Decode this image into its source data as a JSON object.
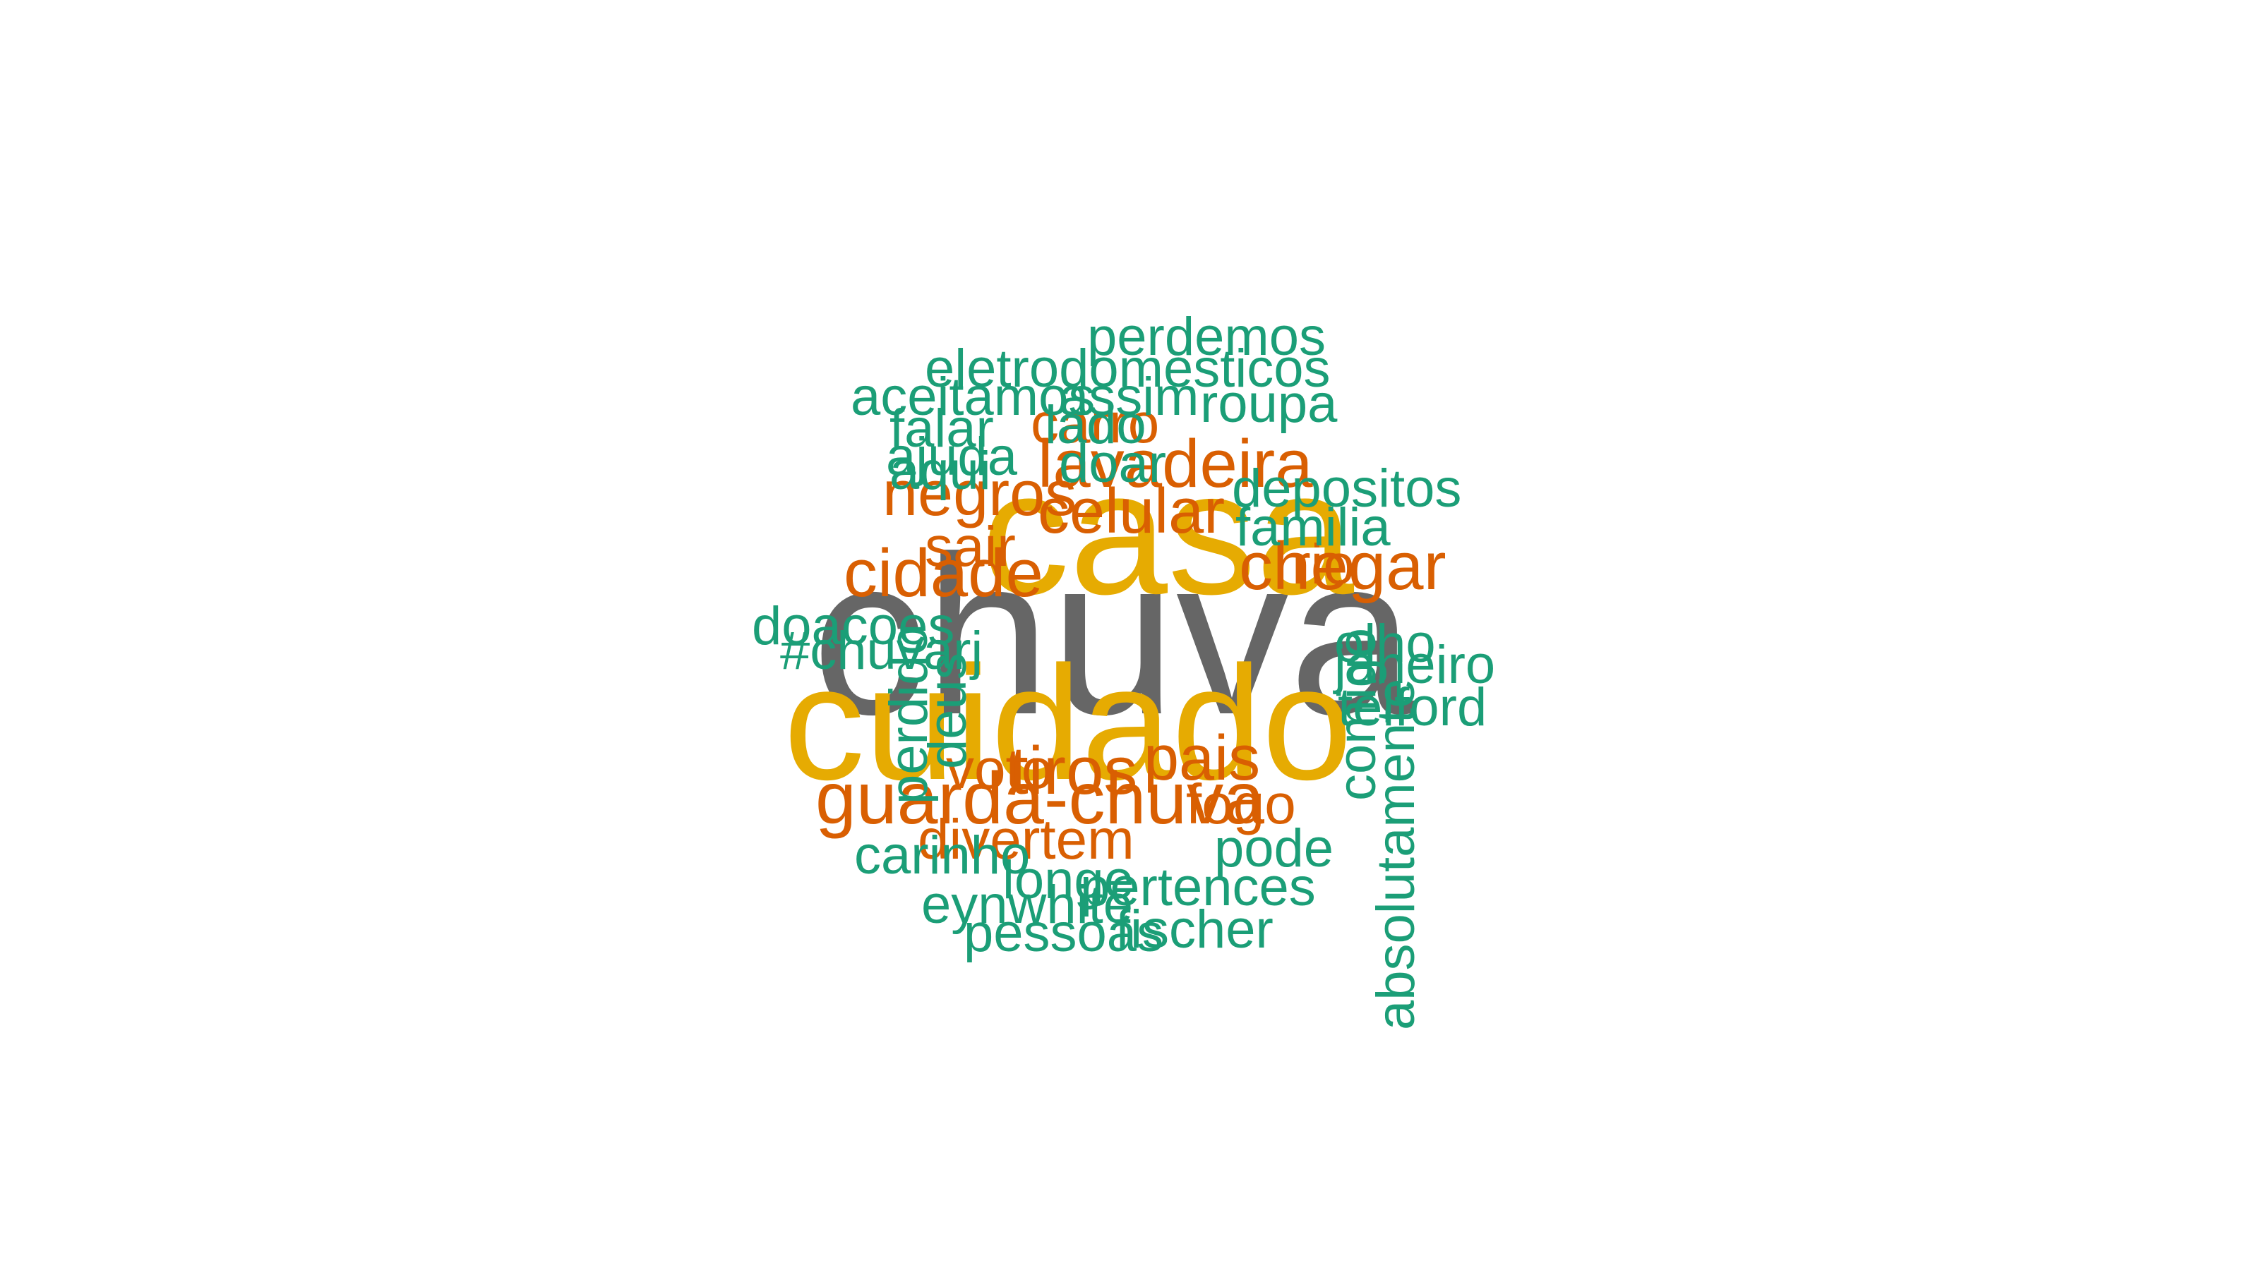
{
  "colors": {
    "gray": "#666666",
    "yellow": "#E6AB02",
    "orange": "#D95F02",
    "green": "#1B9E77",
    "background": "#FFFFFF"
  },
  "words": [
    {
      "text": "chuva",
      "color": "gray",
      "weight": 1.0
    },
    {
      "text": "casa",
      "color": "yellow",
      "weight": 0.8
    },
    {
      "text": "cuidado",
      "color": "yellow",
      "weight": 0.8
    },
    {
      "text": "guarda-chuva",
      "color": "orange",
      "weight": 0.4
    },
    {
      "text": "chegar",
      "color": "orange",
      "weight": 0.4
    },
    {
      "text": "lavadeira",
      "color": "orange",
      "weight": 0.4
    },
    {
      "text": "celular",
      "color": "orange",
      "weight": 0.4
    },
    {
      "text": "cidade",
      "color": "orange",
      "weight": 0.4
    },
    {
      "text": "negros",
      "color": "orange",
      "weight": 0.4
    },
    {
      "text": "tiros",
      "color": "orange",
      "weight": 0.4
    },
    {
      "text": "pais",
      "color": "orange",
      "weight": 0.4
    },
    {
      "text": "carro",
      "color": "orange",
      "weight": 0.4
    },
    {
      "text": "divertem",
      "color": "orange",
      "weight": 0.4
    },
    {
      "text": "voto",
      "color": "orange",
      "weight": 0.4
    },
    {
      "text": "sair",
      "color": "orange",
      "weight": 0.4
    },
    {
      "text": "fogo",
      "color": "orange",
      "weight": 0.4
    },
    {
      "text": "rio",
      "color": "orange",
      "weight": 0.4
    },
    {
      "text": "perdemos",
      "color": "green",
      "weight": 0.2
    },
    {
      "text": "eletrodomesticos",
      "color": "green",
      "weight": 0.2
    },
    {
      "text": "aceitamos",
      "color": "green",
      "weight": 0.2
    },
    {
      "text": "assim",
      "color": "green",
      "weight": 0.2
    },
    {
      "text": "roupa",
      "color": "green",
      "weight": 0.2
    },
    {
      "text": "ajuda",
      "color": "green",
      "weight": 0.2
    },
    {
      "text": "doar",
      "color": "green",
      "weight": 0.2
    },
    {
      "text": "depositos",
      "color": "green",
      "weight": 0.2
    },
    {
      "text": "familia",
      "color": "green",
      "weight": 0.2
    },
    {
      "text": "doacoes",
      "color": "green",
      "weight": 0.2
    },
    {
      "text": "#chuvarj",
      "color": "green",
      "weight": 0.2
    },
    {
      "text": "olho",
      "color": "green",
      "weight": 0.2
    },
    {
      "text": "janeiro",
      "color": "green",
      "weight": 0.2
    },
    {
      "text": "telford",
      "color": "green",
      "weight": 0.2
    },
    {
      "text": "carinho",
      "color": "green",
      "weight": 0.2
    },
    {
      "text": "pode",
      "color": "green",
      "weight": 0.2
    },
    {
      "text": "longe",
      "color": "green",
      "weight": 0.2
    },
    {
      "text": "pertences",
      "color": "green",
      "weight": 0.2
    },
    {
      "text": "eynwhite",
      "color": "green",
      "weight": 0.2
    },
    {
      "text": "pessoas",
      "color": "green",
      "weight": 0.2
    },
    {
      "text": "fischer",
      "color": "green",
      "weight": 0.2
    },
    {
      "text": "absolutamente",
      "color": "green",
      "weight": 0.2
    },
    {
      "text": "deus",
      "color": "green",
      "weight": 0.2
    },
    {
      "text": "perdido",
      "color": "green",
      "weight": 0.2
    },
    {
      "text": "comigo",
      "color": "green",
      "weight": 0.2
    },
    {
      "text": "falar",
      "color": "green",
      "weight": 0.2
    },
    {
      "text": "lado",
      "color": "green",
      "weight": 0.2
    },
    {
      "text": "aqui",
      "color": "green",
      "weight": 0.2
    }
  ]
}
